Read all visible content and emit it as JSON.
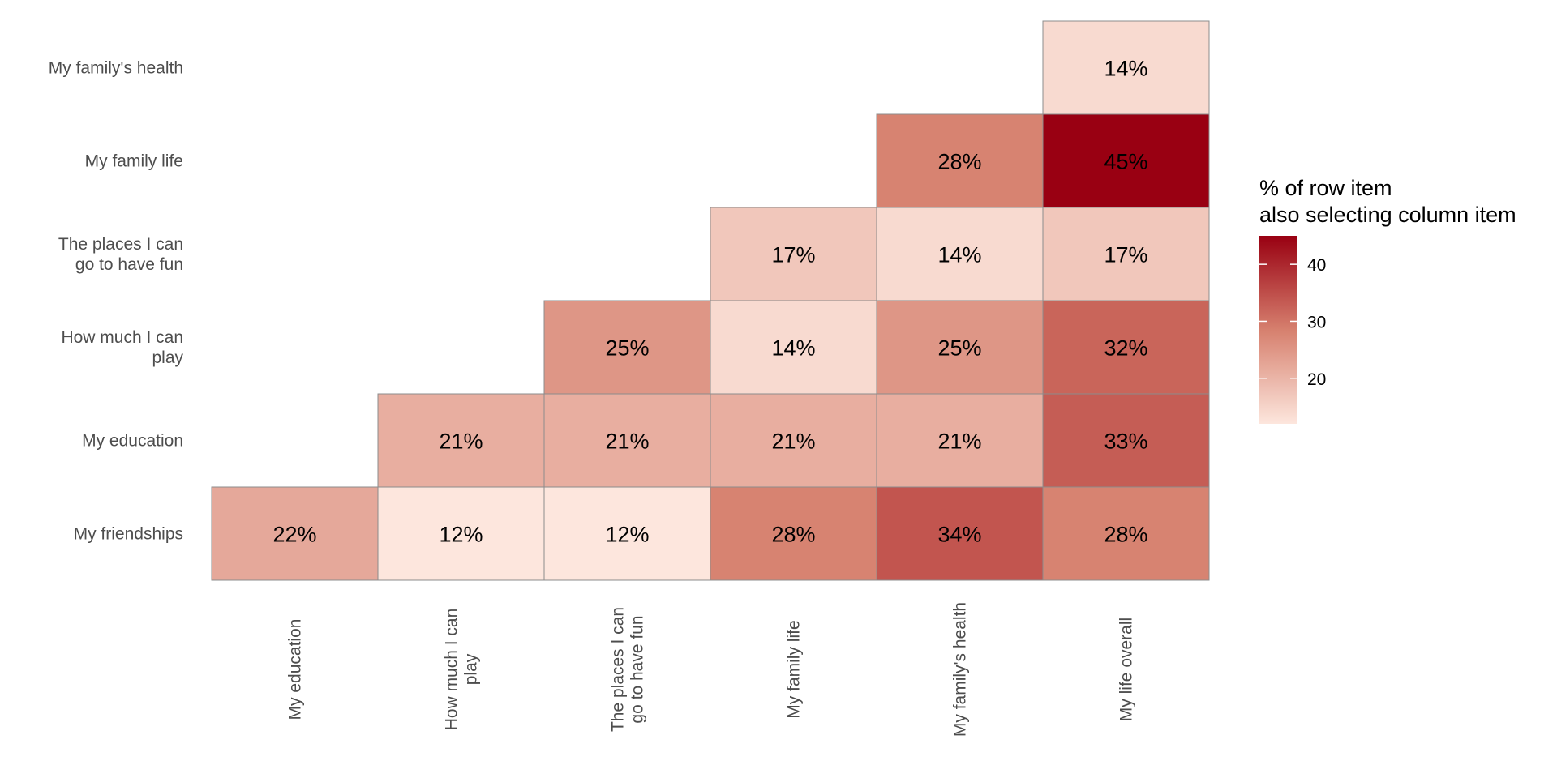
{
  "chart_data": {
    "type": "heatmap",
    "rows": [
      "My family's health",
      "My family life",
      "The places I can go to have fun",
      "How much I can play",
      "My education",
      "My friendships"
    ],
    "row_lines": [
      [
        "My family's health"
      ],
      [
        "My family life"
      ],
      [
        "The places I can",
        "go to have fun"
      ],
      [
        "How much I can",
        "play"
      ],
      [
        "My education"
      ],
      [
        "My friendships"
      ]
    ],
    "columns": [
      "My education",
      "How much I can play",
      "The places I can go to have fun",
      "My family life",
      "My family's health",
      "My life overall"
    ],
    "column_lines": [
      [
        "My education"
      ],
      [
        "How much I can",
        "play"
      ],
      [
        "The places I can",
        "go to have fun"
      ],
      [
        "My family life"
      ],
      [
        "My family's health"
      ],
      [
        "My life overall"
      ]
    ],
    "values": [
      [
        null,
        null,
        null,
        null,
        null,
        14
      ],
      [
        null,
        null,
        null,
        null,
        28,
        45
      ],
      [
        null,
        null,
        null,
        17,
        14,
        17
      ],
      [
        null,
        null,
        25,
        14,
        25,
        32
      ],
      [
        null,
        21,
        21,
        21,
        21,
        33
      ],
      [
        22,
        12,
        12,
        28,
        34,
        28
      ]
    ],
    "value_suffix": "%",
    "legend": {
      "title_lines": [
        "% of row item",
        "also selecting column item"
      ],
      "ticks": [
        20,
        30,
        40
      ],
      "range": [
        12,
        45
      ],
      "position": "right"
    },
    "colors": {
      "low": "#fde6dd",
      "mid": "#d6806e",
      "high": "#990012",
      "border": "#8c8c8c"
    },
    "grid": false
  }
}
